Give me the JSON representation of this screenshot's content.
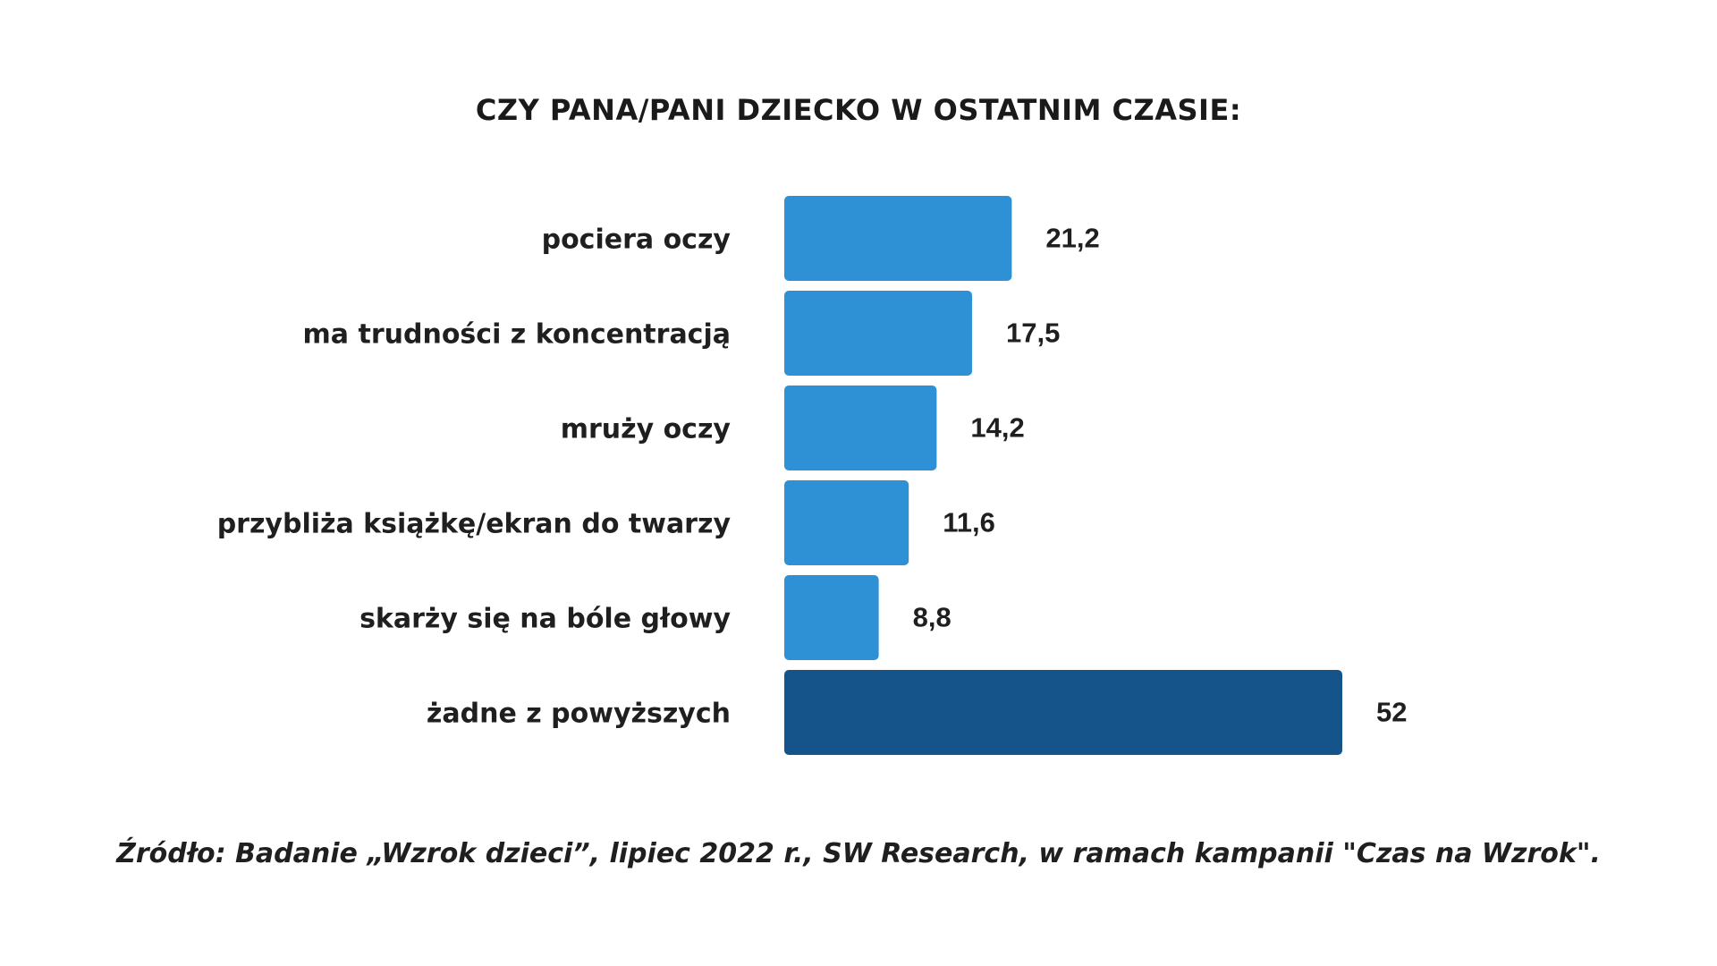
{
  "chart_data": {
    "type": "bar",
    "orientation": "horizontal",
    "title": "CZY PANA/PANI DZIECKO W OSTATNIM CZASIE:",
    "categories": [
      "pociera oczy",
      "ma trudności z koncentracją",
      "mruży oczy",
      "przybliża książkę/ekran do twarzy",
      "skarży się na bóle głowy",
      "żadne z powyższych"
    ],
    "values": [
      21.2,
      17.5,
      14.2,
      11.6,
      8.8,
      52
    ],
    "value_labels": [
      "21,2",
      "17,5",
      "14,2",
      "11,6",
      "8,8",
      "52"
    ],
    "colors": [
      "#2e91d6",
      "#2e91d6",
      "#2e91d6",
      "#2e91d6",
      "#2e91d6",
      "#15548a"
    ],
    "xlim": [
      0,
      52
    ],
    "grid": false,
    "legend": "none"
  },
  "source": "Źródło: Badanie „Wzrok dzieci”, lipiec 2022 r., SW Research, w ramach kampanii \"Czas na Wzrok\"."
}
